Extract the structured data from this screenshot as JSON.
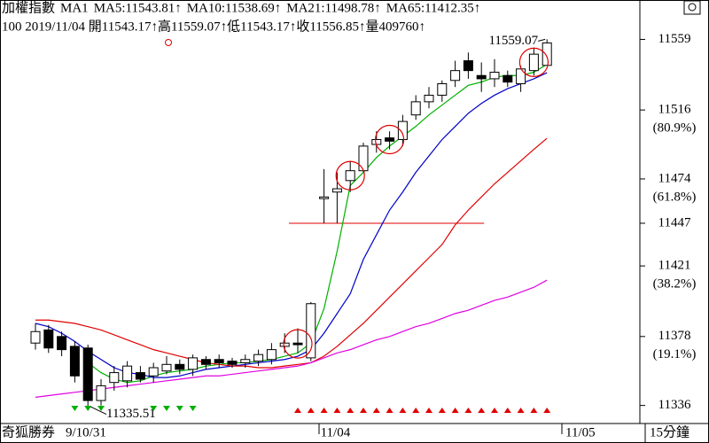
{
  "chart_data": {
    "type": "candlestick",
    "title": "加權指數",
    "indicator": "MA1",
    "info": "100 2019/11/04 開11543.17↑高11559.07↑低11543.17↑收11556.85↑量409760↑",
    "categories": [
      null,
      null,
      null,
      null,
      null,
      null,
      null,
      null,
      null,
      null,
      null,
      null,
      null,
      null,
      null,
      null,
      null,
      null,
      null,
      null,
      null,
      null,
      "11/04",
      null,
      null,
      null,
      null,
      null,
      null,
      null,
      null,
      null,
      null,
      null,
      null,
      null,
      null,
      null,
      null,
      null
    ],
    "next_label": "11/05",
    "open": [
      11374,
      11382,
      11378,
      11372,
      11371,
      11339,
      11350,
      11351,
      11356,
      11354,
      11357,
      11361,
      11358,
      11364,
      11364,
      11363,
      11362,
      11363,
      11364,
      11372,
      11374,
      11365,
      11462,
      11466,
      11473,
      11479,
      11495,
      11499,
      11498,
      11513,
      11521,
      11525,
      11534,
      11546,
      11537,
      11535,
      11537,
      11532,
      11540,
      11543.17
    ],
    "high": [
      11386,
      11385,
      11381,
      11375,
      11373,
      11352,
      11360,
      11363,
      11360,
      11362,
      11366,
      11364,
      11367,
      11366,
      11367,
      11365,
      11367,
      11370,
      11374,
      11380,
      11383,
      11399,
      11480,
      11478,
      11485,
      11496,
      11503,
      11503,
      11513,
      11525,
      11530,
      11534,
      11546,
      11551,
      11545,
      11547,
      11540,
      11543,
      11554,
      11559.07
    ],
    "low": [
      11370,
      11368,
      11366,
      11350,
      11335.51,
      11336,
      11345,
      11347,
      11350,
      11350,
      11355,
      11355,
      11354,
      11358,
      11359,
      11359,
      11359,
      11360,
      11361,
      11368,
      11368,
      11363,
      11447,
      11447,
      11466,
      11478,
      11490,
      11492,
      11494,
      11510,
      11517,
      11521,
      11530,
      11535,
      11527,
      11530,
      11530,
      11527,
      11537,
      11543.17
    ],
    "close": [
      11381,
      11371,
      11370,
      11354,
      11339,
      11348,
      11356,
      11360,
      11352,
      11359,
      11361,
      11358,
      11365,
      11361,
      11362,
      11361,
      11364,
      11367,
      11370,
      11374,
      11373,
      11398,
      11463,
      11468,
      11479,
      11494,
      11498,
      11497,
      11509,
      11521,
      11525,
      11532,
      11540,
      11540,
      11535,
      11539,
      11533,
      11541,
      11550,
      11556.85
    ],
    "series": [
      {
        "name": "MA5:11543.81↑",
        "color": "#00b000",
        "values": [
          null,
          null,
          null,
          null,
          11362,
          11356,
          11352,
          11350,
          11351,
          11354,
          11356,
          11357,
          11358,
          11360,
          11361,
          11362,
          11362,
          11363,
          11364,
          11366,
          11368,
          11374,
          11395,
          11430,
          11470,
          11478,
          11487,
          11494,
          11500,
          11506,
          11513,
          11519,
          11525,
          11531,
          11533,
          11536,
          11537,
          11537,
          11539,
          11543.81
        ]
      },
      {
        "name": "MA10:11538.69↑",
        "color": "#0000c8",
        "values": [
          11386,
          11384,
          11380,
          11375,
          11369,
          11364,
          11359,
          11356,
          11355,
          11353,
          11353,
          11354,
          11356,
          11358,
          11359,
          11360,
          11361,
          11362,
          11363,
          11364,
          11366,
          11370,
          11380,
          11392,
          11404,
          11425,
          11440,
          11455,
          11466,
          11478,
          11488,
          11498,
          11506,
          11514,
          11520,
          11525,
          11529,
          11532,
          11535,
          11538.69
        ]
      },
      {
        "name": "MA21:11498.78↑",
        "color": "#e00000",
        "values": [
          11388,
          11388,
          11387,
          11386,
          11384,
          11382,
          11379,
          11376,
          11373,
          11370,
          11368,
          11366,
          11364,
          11362,
          11361,
          11360,
          11360,
          11359,
          11359,
          11360,
          11361,
          11362,
          11366,
          11372,
          11379,
          11386,
          11394,
          11402,
          11410,
          11418,
          11426,
          11434,
          11446,
          11455,
          11463,
          11471,
          11478,
          11485,
          11492,
          11498.78
        ]
      },
      {
        "name": "MA65:11412.35↑",
        "color": "#e000e0",
        "values": [
          11341,
          11342,
          11343,
          11344,
          11345,
          11346,
          11347,
          11348,
          11349,
          11350,
          11351,
          11352,
          11353,
          11354,
          11354,
          11355,
          11356,
          11357,
          11358,
          11359,
          11360,
          11362,
          11365,
          11368,
          11370,
          11373,
          11376,
          11378,
          11381,
          11384,
          11386,
          11389,
          11392,
          11394,
          11397,
          11400,
          11402,
          11405,
          11408,
          11412.35
        ]
      }
    ],
    "ylim": [
      11325,
      11583
    ],
    "yticks": [
      11559,
      11516,
      11474,
      11447,
      11421,
      11378,
      11336
    ],
    "fib_labels": [
      {
        "value": 11516,
        "label": "(80.9%)"
      },
      {
        "value": 11474,
        "label": "(61.8%)"
      },
      {
        "value": 11421,
        "label": "(38.2%)"
      },
      {
        "value": 11378,
        "label": "(19.1%)"
      }
    ],
    "max_label": 11559.07,
    "min_label": 11335.51,
    "level_line": 11447,
    "footer": {
      "brand": "奇狐勝券",
      "start_date": "9/10/31",
      "period": "15分鐘"
    }
  }
}
